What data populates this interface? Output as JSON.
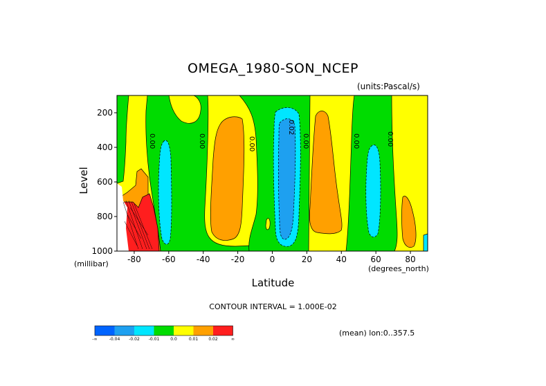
{
  "chart_data": {
    "type": "heatmap",
    "title": "OMEGA_1980-SON_NCEP",
    "units_note": "(units:Pascal/s)",
    "xlabel": "Latitude",
    "x_unit": "(degrees_north)",
    "ylabel": "Level",
    "y_unit": "(millibar)",
    "x_range": [
      -90,
      90
    ],
    "y_range": [
      1000,
      100
    ],
    "x_ticks": [
      -80,
      -60,
      -40,
      -20,
      0,
      20,
      40,
      60,
      80
    ],
    "y_ticks": [
      200,
      400,
      600,
      800,
      1000
    ],
    "contour_interval": "CONTOUR INTERVAL = 1.000E-02",
    "contour_labels": [
      "0.00",
      "0.00",
      "0.00",
      "0.00",
      "0.00",
      "0.00",
      "0.02"
    ],
    "note": "(mean) lon:0..357.5",
    "colorbar": {
      "labels": [
        "-∞",
        "-0.04",
        "-0.02",
        "-0.01",
        "0.0",
        "0.01",
        "0.02",
        "∞"
      ],
      "colors": [
        "#0064ff",
        "#1ea0f0",
        "#00e6ff",
        "#00dc00",
        "#ffff00",
        "#ffa000",
        "#ff1e1e"
      ]
    },
    "regions": [
      {
        "name": "green-tongue-nh",
        "level": "-0.01..0.0",
        "color": "#00dc00"
      },
      {
        "name": "orange-cell-20s",
        "level": "0.01..0.02",
        "color": "#ffa000"
      },
      {
        "name": "cyan-cell-60s",
        "level": "-0.02..-0.01",
        "color": "#00e6ff"
      },
      {
        "name": "blue-cell-10n",
        "level": "-0.04..-0.02",
        "color": "#1ea0f0"
      },
      {
        "name": "orange-cell-25n",
        "level": "0.01..0.02",
        "color": "#ffa000"
      },
      {
        "name": "cyan-cell-57n",
        "level": "-0.02..-0.01",
        "color": "#00e6ff"
      },
      {
        "name": "red-cell-75s",
        "level": "> 0.02",
        "color": "#ff1e1e"
      }
    ]
  }
}
